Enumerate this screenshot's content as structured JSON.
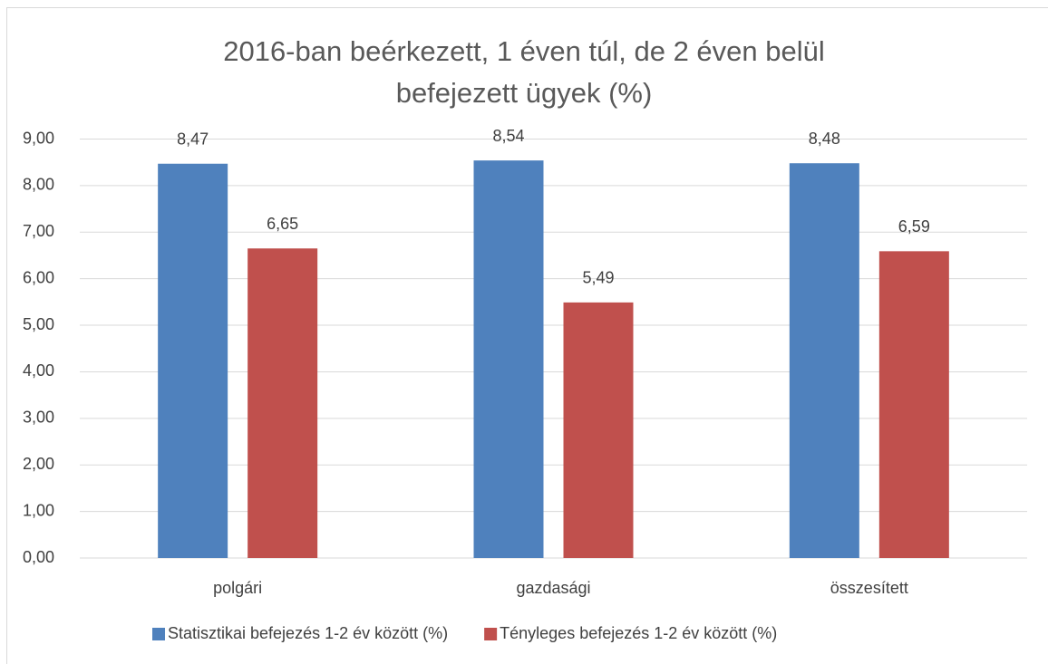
{
  "chart_data": {
    "type": "bar",
    "title": "2016-ban beérkezett, 1 éven túl, de 2 éven belül befejezett ügyek (%)",
    "categories": [
      "polgári",
      "gazdasági",
      "összesített"
    ],
    "series": [
      {
        "name": "Statisztikai befejezés 1-2 év között (%)",
        "color": "#4f81bd",
        "values": [
          8.47,
          8.54,
          8.48
        ],
        "value_labels": [
          "8,47",
          "8,54",
          "8,48"
        ]
      },
      {
        "name": "Tényleges befejezés 1-2 év között (%)",
        "color": "#c0504d",
        "values": [
          6.65,
          5.49,
          6.59
        ],
        "value_labels": [
          "6,65",
          "5,49",
          "6,59"
        ]
      }
    ],
    "ylim": [
      0,
      9
    ],
    "yticks": [
      {
        "value": 0,
        "label": "0,00"
      },
      {
        "value": 1,
        "label": "1,00"
      },
      {
        "value": 2,
        "label": "2,00"
      },
      {
        "value": 3,
        "label": "3,00"
      },
      {
        "value": 4,
        "label": "4,00"
      },
      {
        "value": 5,
        "label": "5,00"
      },
      {
        "value": 6,
        "label": "6,00"
      },
      {
        "value": 7,
        "label": "7,00"
      },
      {
        "value": 8,
        "label": "8,00"
      },
      {
        "value": 9,
        "label": "9,00"
      }
    ],
    "grid": true,
    "legend": "bottom"
  }
}
